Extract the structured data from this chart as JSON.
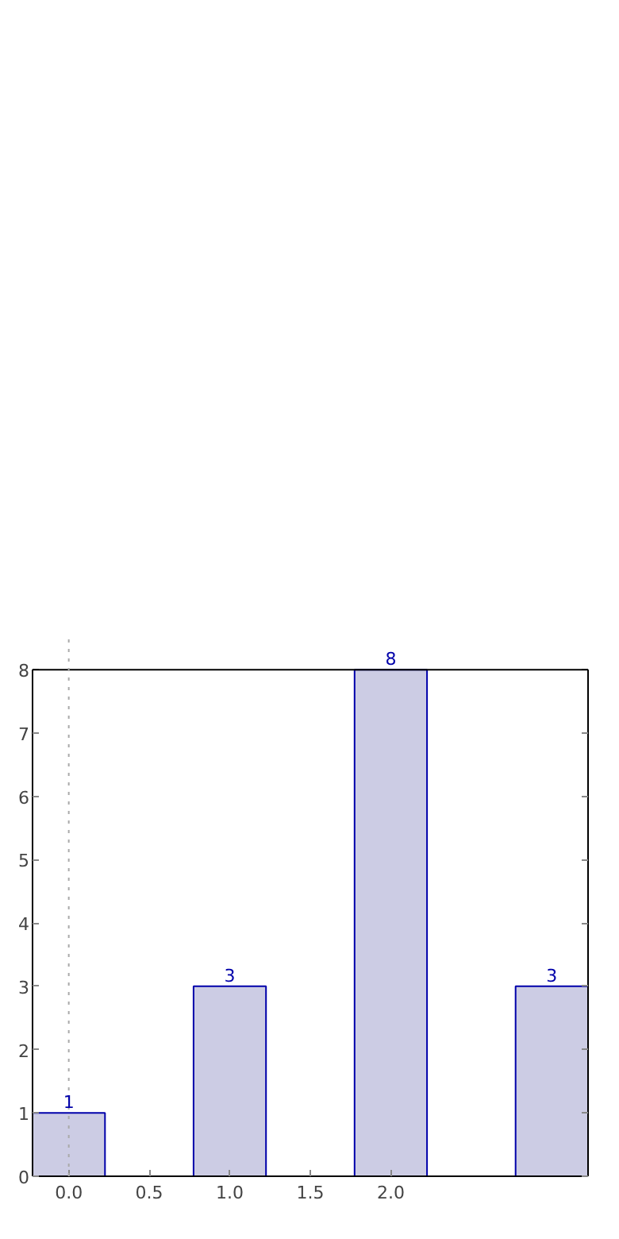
{
  "chart_data": {
    "type": "bar",
    "x": [
      0,
      1,
      2,
      3
    ],
    "values": [
      1,
      3,
      8,
      3
    ],
    "color": "#ccccE4",
    "data_labels": true,
    "xlim": [
      -0.225,
      3.225
    ],
    "ylim": [
      0,
      8
    ],
    "xticks": [
      {
        "value": 0,
        "label": "0.0"
      },
      {
        "value": 0.5,
        "label": "0.5"
      },
      {
        "value": 1,
        "label": "1.0"
      },
      {
        "value": 1.5,
        "label": "1.5"
      },
      {
        "value": 2,
        "label": "2.0"
      }
    ],
    "yticks": [
      0,
      1,
      2,
      3,
      4,
      5,
      6,
      7,
      8
    ],
    "grid": false,
    "ref_lines": [
      {
        "axis": "x",
        "value": 0,
        "color": "#aaaaaa",
        "line_style": "dotted"
      }
    ]
  }
}
